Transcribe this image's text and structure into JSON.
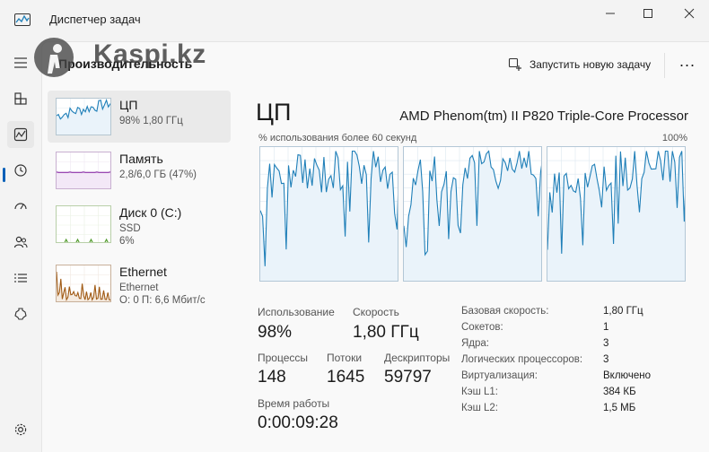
{
  "window": {
    "title": "Диспетчер задач"
  },
  "watermark": {
    "text": "Kaspi.kz"
  },
  "header": {
    "page_title": "Производительность",
    "run_task_label": "Запустить новую задачу",
    "more_label": "..."
  },
  "devices": [
    {
      "name": "ЦП",
      "line1": "98% 1,80 ГГц",
      "line2": "",
      "color": "#1f7fb8",
      "usage_percent": 98
    },
    {
      "name": "Память",
      "line1": "2,8/6,0 ГБ (47%)",
      "line2": "",
      "color": "#8b2fa8",
      "usage_percent": 47
    },
    {
      "name": "Диск 0 (C:)",
      "line1": "SSD",
      "line2": "6%",
      "color": "#4f9a2a",
      "usage_percent": 6
    },
    {
      "name": "Ethernet",
      "line1": "Ethernet",
      "line2": "О: 0 П: 6,6 Мбит/с",
      "color": "#a05a14",
      "usage_percent": null
    }
  ],
  "cpu": {
    "title": "ЦП",
    "model": "AMD Phenom(tm) II P820 Triple-Core Processor",
    "graph_label": "% использования более 60 секунд",
    "graph_max": "100%",
    "stats": {
      "usage_label": "Использование",
      "usage_value": "98%",
      "speed_label": "Скорость",
      "speed_value": "1,80 ГГц",
      "processes_label": "Процессы",
      "processes_value": "148",
      "threads_label": "Потоки",
      "threads_value": "1645",
      "handles_label": "Дескрипторы",
      "handles_value": "59797",
      "uptime_label": "Время работы",
      "uptime_value": "0:00:09:28"
    },
    "properties": [
      {
        "label": "Базовая скорость:",
        "value": "1,80 ГГц"
      },
      {
        "label": "Сокетов:",
        "value": "1"
      },
      {
        "label": "Ядра:",
        "value": "3"
      },
      {
        "label": "Логических процессоров:",
        "value": "3"
      },
      {
        "label": "Виртуализация:",
        "value": "Включено"
      },
      {
        "label": "Кэш L1:",
        "value": "384 КБ"
      },
      {
        "label": "Кэш L2:",
        "value": "1,5 МБ"
      }
    ]
  },
  "nav_icons": [
    "hamburger-menu-icon",
    "processes-icon",
    "performance-icon",
    "app-history-icon",
    "startup-apps-icon",
    "users-icon",
    "details-icon",
    "services-icon",
    "settings-icon"
  ],
  "colors": {
    "accent": "#005fb8",
    "cpu_line": "#1f7fb8",
    "cpu_fill": "#eaf3fa",
    "memory": "#8b2fa8",
    "disk": "#4f9a2a",
    "ethernet": "#a05a14"
  }
}
